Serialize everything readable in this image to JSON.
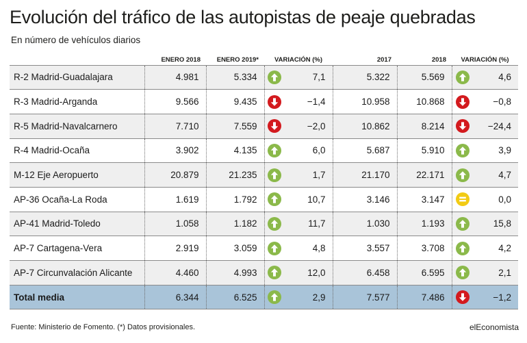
{
  "title": "Evolución del tráfico de las autopistas de peaje quebradas",
  "subtitle": "En número de vehículos diarios",
  "headers": {
    "col1": "ENERO 2018",
    "col2": "ENERO 2019*",
    "col3": "VARIACIÓN (%)",
    "col4": "2017",
    "col5": "2018",
    "col6": "VARIACIÓN (%)"
  },
  "colors": {
    "up": "#8bb94a",
    "down": "#d31a1e",
    "equal": "#f2cb14",
    "total_bg": "#a9c4d9"
  },
  "rows": [
    {
      "name": "R-2 Madrid-Guadalajara",
      "ene2018": "4.981",
      "ene2019": "5.334",
      "var1_icon": "up",
      "var1": "7,1",
      "y2017": "5.322",
      "y2018": "5.569",
      "var2_icon": "up",
      "var2": "4,6"
    },
    {
      "name": "R-3 Madrid-Arganda",
      "ene2018": "9.566",
      "ene2019": "9.435",
      "var1_icon": "down",
      "var1": "−1,4",
      "y2017": "10.958",
      "y2018": "10.868",
      "var2_icon": "down",
      "var2": "−0,8"
    },
    {
      "name": "R-5 Madrid-Navalcarnero",
      "ene2018": "7.710",
      "ene2019": "7.559",
      "var1_icon": "down",
      "var1": "−2,0",
      "y2017": "10.862",
      "y2018": "8.214",
      "var2_icon": "down",
      "var2": "−24,4"
    },
    {
      "name": "R-4 Madrid-Ocaña",
      "ene2018": "3.902",
      "ene2019": "4.135",
      "var1_icon": "up",
      "var1": "6,0",
      "y2017": "5.687",
      "y2018": "5.910",
      "var2_icon": "up",
      "var2": "3,9"
    },
    {
      "name": "M-12 Eje Aeropuerto",
      "ene2018": "20.879",
      "ene2019": "21.235",
      "var1_icon": "up",
      "var1": "1,7",
      "y2017": "21.170",
      "y2018": "22.171",
      "var2_icon": "up",
      "var2": "4,7"
    },
    {
      "name": "AP-36 Ocaña-La Roda",
      "ene2018": "1.619",
      "ene2019": "1.792",
      "var1_icon": "up",
      "var1": "10,7",
      "y2017": "3.146",
      "y2018": "3.147",
      "var2_icon": "equal",
      "var2": "0,0"
    },
    {
      "name": "AP-41 Madrid-Toledo",
      "ene2018": "1.058",
      "ene2019": "1.182",
      "var1_icon": "up",
      "var1": "11,7",
      "y2017": "1.030",
      "y2018": "1.193",
      "var2_icon": "up",
      "var2": "15,8"
    },
    {
      "name": "AP-7 Cartagena-Vera",
      "ene2018": "2.919",
      "ene2019": "3.059",
      "var1_icon": "up",
      "var1": "4,8",
      "y2017": "3.557",
      "y2018": "3.708",
      "var2_icon": "up",
      "var2": "4,2"
    },
    {
      "name": "AP-7 Circunvalación Alicante",
      "ene2018": "4.460",
      "ene2019": "4.993",
      "var1_icon": "up",
      "var1": "12,0",
      "y2017": "6.458",
      "y2018": "6.595",
      "var2_icon": "up",
      "var2": "2,1"
    },
    {
      "name": "Total media",
      "ene2018": "6.344",
      "ene2019": "6.525",
      "var1_icon": "up",
      "var1": "2,9",
      "y2017": "7.577",
      "y2018": "7.486",
      "var2_icon": "down",
      "var2": "−1,2",
      "total": true
    }
  ],
  "source": "Fuente: Ministerio de Fomento. (*) Datos provisionales.",
  "brand": "elEconomista"
}
